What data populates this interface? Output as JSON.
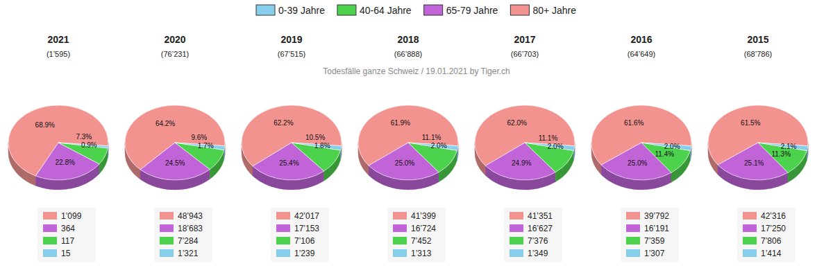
{
  "caption": "Todesfälle ganze Schweiz / 19.01.2021 by Tiger.ch",
  "chart_data": [
    {
      "type": "pie",
      "title": "2021",
      "subtitle": "(1’595)",
      "categories": [
        "80+ Jahre",
        "65-79 Jahre",
        "40-64 Jahre",
        "0-39 Jahre"
      ],
      "values": [
        1099,
        364,
        117,
        15
      ],
      "value_labels": [
        "1’099",
        "364",
        "117",
        "15"
      ],
      "percentage_labels": [
        "68.9%",
        "22.8%",
        "7.3%",
        "0.9%"
      ],
      "colors": [
        "#f29390",
        "#c064d8",
        "#4cd24c",
        "#87ceeb"
      ]
    },
    {
      "type": "pie",
      "title": "2020",
      "subtitle": "(76’231)",
      "categories": [
        "80+ Jahre",
        "65-79 Jahre",
        "40-64 Jahre",
        "0-39 Jahre"
      ],
      "values": [
        48943,
        18683,
        7284,
        1321
      ],
      "value_labels": [
        "48’943",
        "18’683",
        "7’284",
        "1’321"
      ],
      "percentage_labels": [
        "64.2%",
        "24.5%",
        "9.6%",
        "1.7%"
      ],
      "colors": [
        "#f29390",
        "#c064d8",
        "#4cd24c",
        "#87ceeb"
      ]
    },
    {
      "type": "pie",
      "title": "2019",
      "subtitle": "(67’515)",
      "categories": [
        "80+ Jahre",
        "65-79 Jahre",
        "40-64 Jahre",
        "0-39 Jahre"
      ],
      "values": [
        42017,
        17153,
        7106,
        1239
      ],
      "value_labels": [
        "42’017",
        "17’153",
        "7’106",
        "1’239"
      ],
      "percentage_labels": [
        "62.2%",
        "25.4%",
        "10.5%",
        "1.8%"
      ],
      "colors": [
        "#f29390",
        "#c064d8",
        "#4cd24c",
        "#87ceeb"
      ]
    },
    {
      "type": "pie",
      "title": "2018",
      "subtitle": "(66’888)",
      "categories": [
        "80+ Jahre",
        "65-79 Jahre",
        "40-64 Jahre",
        "0-39 Jahre"
      ],
      "values": [
        41399,
        16724,
        7452,
        1313
      ],
      "value_labels": [
        "41’399",
        "16’724",
        "7’452",
        "1’313"
      ],
      "percentage_labels": [
        "61.9%",
        "25.0%",
        "11.1%",
        "2.0%"
      ],
      "colors": [
        "#f29390",
        "#c064d8",
        "#4cd24c",
        "#87ceeb"
      ]
    },
    {
      "type": "pie",
      "title": "2017",
      "subtitle": "(66’703)",
      "categories": [
        "80+ Jahre",
        "65-79 Jahre",
        "40-64 Jahre",
        "0-39 Jahre"
      ],
      "values": [
        41351,
        16627,
        7376,
        1349
      ],
      "value_labels": [
        "41’351",
        "16’627",
        "7’376",
        "1’349"
      ],
      "percentage_labels": [
        "62.0%",
        "24.9%",
        "11.1%",
        "2.0%"
      ],
      "colors": [
        "#f29390",
        "#c064d8",
        "#4cd24c",
        "#87ceeb"
      ]
    },
    {
      "type": "pie",
      "title": "2016",
      "subtitle": "(64’649)",
      "categories": [
        "80+ Jahre",
        "65-79 Jahre",
        "40-64 Jahre",
        "0-39 Jahre"
      ],
      "values": [
        39792,
        16191,
        7359,
        1307
      ],
      "value_labels": [
        "39’792",
        "16’191",
        "7’359",
        "1’307"
      ],
      "percentage_labels": [
        "61.6%",
        "25.0%",
        "11.4%",
        "2.0%"
      ],
      "colors": [
        "#f29390",
        "#c064d8",
        "#4cd24c",
        "#87ceeb"
      ]
    },
    {
      "type": "pie",
      "title": "2015",
      "subtitle": "(68’786)",
      "categories": [
        "80+ Jahre",
        "65-79 Jahre",
        "40-64 Jahre",
        "0-39 Jahre"
      ],
      "values": [
        42316,
        17250,
        7806,
        1414
      ],
      "value_labels": [
        "42’316",
        "17’250",
        "7’806",
        "1’414"
      ],
      "percentage_labels": [
        "61.5%",
        "25.1%",
        "11.3%",
        "2.1%"
      ],
      "colors": [
        "#f29390",
        "#c064d8",
        "#4cd24c",
        "#87ceeb"
      ]
    }
  ]
}
